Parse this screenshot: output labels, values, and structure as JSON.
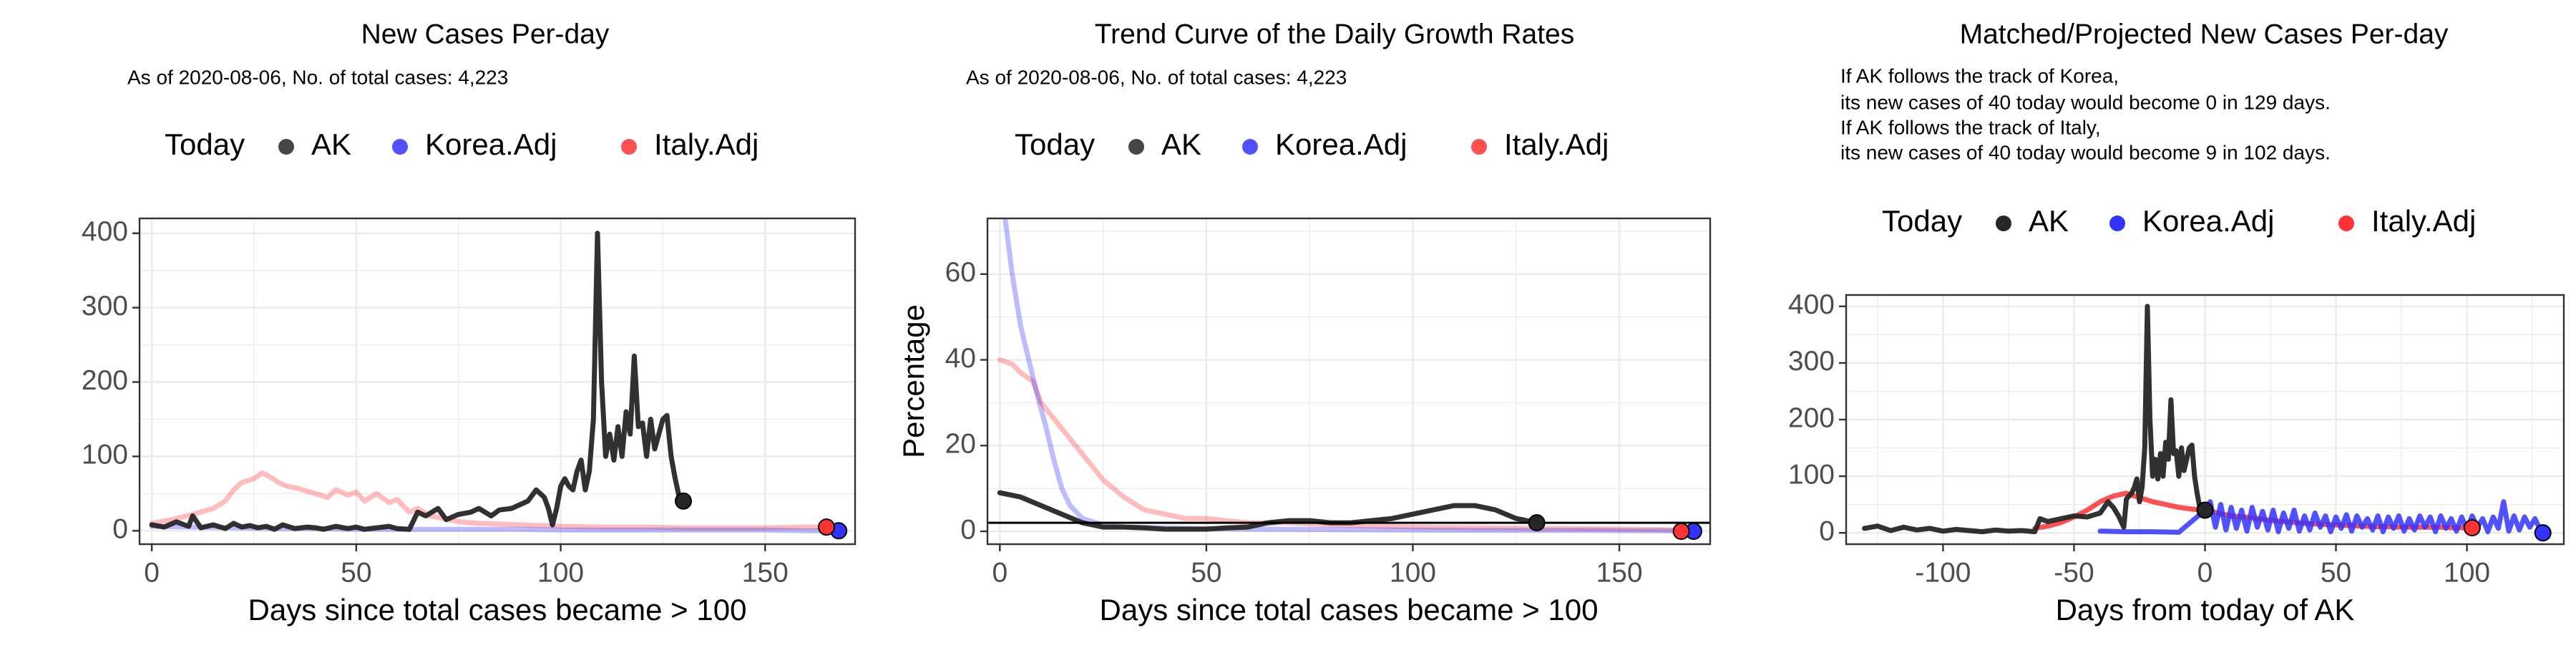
{
  "colors": {
    "ak": "#262626",
    "korea": "#3333ff",
    "italy": "#ff3333",
    "grid": "#ebebeb",
    "panel_border": "#333333"
  },
  "chart_data": [
    {
      "type": "line",
      "title": "New Cases Per-day",
      "subtitle": "As of 2020-08-06, No. of total cases: 4,223",
      "xlabel": "Days since total cases became > 100",
      "ylabel": "",
      "xlim": [
        -3,
        172
      ],
      "ylim": [
        -18,
        420
      ],
      "xticks": [
        0,
        50,
        100,
        150
      ],
      "yticks": [
        0,
        100,
        200,
        300,
        400
      ],
      "legend": {
        "position": "top",
        "entries": [
          "Today",
          "AK",
          "Korea.Adj",
          "Italy.Adj"
        ]
      },
      "series": [
        {
          "name": "AK",
          "x": [
            0,
            3,
            6,
            9,
            10,
            12,
            15,
            18,
            20,
            22,
            24,
            26,
            28,
            30,
            32,
            35,
            38,
            40,
            42,
            45,
            48,
            50,
            52,
            55,
            58,
            60,
            63,
            65,
            67,
            70,
            72,
            75,
            78,
            80,
            83,
            85,
            88,
            90,
            92,
            94,
            96,
            97,
            98,
            99,
            100,
            101,
            102,
            103,
            104,
            105,
            106,
            107,
            108,
            109,
            110,
            111,
            112,
            113,
            114,
            115,
            116,
            117,
            118,
            119,
            120,
            121,
            122,
            123,
            124,
            125,
            126,
            127,
            128,
            129,
            130
          ],
          "y": [
            8,
            5,
            12,
            6,
            20,
            4,
            8,
            3,
            10,
            5,
            7,
            4,
            6,
            2,
            8,
            3,
            5,
            4,
            2,
            6,
            3,
            5,
            2,
            4,
            6,
            3,
            2,
            25,
            20,
            30,
            15,
            22,
            25,
            30,
            20,
            28,
            30,
            35,
            40,
            55,
            45,
            30,
            8,
            30,
            60,
            70,
            60,
            55,
            80,
            95,
            55,
            80,
            150,
            400,
            200,
            100,
            130,
            95,
            140,
            100,
            160,
            130,
            235,
            140,
            145,
            100,
            150,
            110,
            130,
            150,
            155,
            100,
            70,
            45,
            40
          ]
        },
        {
          "name": "Korea.Adj",
          "x": [
            0,
            10,
            20,
            30,
            40,
            50,
            60,
            70,
            80,
            90,
            100,
            110,
            120,
            130,
            140,
            150,
            160,
            168
          ],
          "y": [
            6,
            5,
            4,
            3,
            3,
            2,
            2,
            2,
            2,
            2,
            1,
            1,
            1,
            1,
            1,
            1,
            0,
            0
          ]
        },
        {
          "name": "Italy.Adj",
          "x": [
            0,
            5,
            10,
            15,
            18,
            20,
            22,
            25,
            27,
            29,
            31,
            33,
            35,
            37,
            40,
            43,
            45,
            48,
            50,
            52,
            55,
            58,
            60,
            63,
            65,
            68,
            70,
            75,
            80,
            90,
            100,
            110,
            120,
            130,
            140,
            150,
            160,
            165
          ],
          "y": [
            10,
            15,
            22,
            30,
            40,
            55,
            65,
            70,
            78,
            72,
            65,
            60,
            58,
            55,
            50,
            45,
            55,
            48,
            52,
            40,
            50,
            38,
            42,
            25,
            30,
            20,
            18,
            12,
            10,
            8,
            6,
            5,
            5,
            4,
            4,
            4,
            5,
            5
          ]
        }
      ],
      "today_points": [
        {
          "series": "AK",
          "x": 130,
          "y": 40
        },
        {
          "series": "Korea.Adj",
          "x": 168,
          "y": 0
        },
        {
          "series": "Italy.Adj",
          "x": 165,
          "y": 5
        }
      ]
    },
    {
      "type": "line",
      "title": "Trend Curve of the Daily Growth Rates",
      "subtitle": "As of 2020-08-06, No. of total cases: 4,223",
      "xlabel": "Days since total cases became > 100",
      "ylabel": "Percentage",
      "xlim": [
        -3,
        172
      ],
      "ylim": [
        -3,
        73
      ],
      "xticks": [
        0,
        50,
        100,
        150
      ],
      "yticks": [
        0,
        20,
        40,
        60
      ],
      "hline": 2,
      "legend": {
        "position": "top",
        "entries": [
          "Today",
          "AK",
          "Korea.Adj",
          "Italy.Adj"
        ]
      },
      "series": [
        {
          "name": "AK",
          "x": [
            0,
            5,
            10,
            15,
            20,
            25,
            30,
            35,
            40,
            45,
            50,
            55,
            60,
            65,
            70,
            75,
            80,
            85,
            90,
            95,
            100,
            105,
            110,
            115,
            120,
            125,
            130
          ],
          "y": [
            9,
            8,
            6,
            4,
            2,
            1,
            1,
            0.8,
            0.5,
            0.5,
            0.5,
            0.8,
            1,
            2,
            2.5,
            2.5,
            2,
            2,
            2.5,
            3,
            4,
            5,
            6,
            6,
            5,
            3,
            2
          ]
        },
        {
          "name": "Korea.Adj",
          "x": [
            1,
            3,
            5,
            7,
            9,
            11,
            13,
            15,
            17,
            20,
            25,
            30,
            40,
            50,
            60,
            80,
            100,
            120,
            140,
            160,
            168
          ],
          "y": [
            75,
            60,
            48,
            40,
            32,
            25,
            17,
            10,
            6,
            3,
            1.5,
            1,
            0.8,
            0.6,
            0.5,
            0.4,
            0.3,
            0.2,
            0.2,
            0.1,
            0
          ]
        },
        {
          "name": "Italy.Adj",
          "x": [
            0,
            3,
            5,
            8,
            10,
            15,
            20,
            25,
            30,
            35,
            40,
            45,
            50,
            60,
            70,
            80,
            100,
            120,
            140,
            160,
            165
          ],
          "y": [
            40,
            39,
            37,
            35,
            30,
            24,
            18,
            12,
            8,
            5,
            4,
            3,
            3,
            2,
            2,
            1.5,
            1,
            0.8,
            0.6,
            0.4,
            0.3
          ]
        }
      ],
      "today_points": [
        {
          "series": "AK",
          "x": 130,
          "y": 2
        },
        {
          "series": "Korea.Adj",
          "x": 168,
          "y": 0
        },
        {
          "series": "Italy.Adj",
          "x": 165,
          "y": 0
        }
      ]
    },
    {
      "type": "line",
      "title": "Matched/Projected New Cases Per-day",
      "annotations": [
        "If AK follows the track of Korea,",
        "its new cases of 40 today would become 0 in 129 days.",
        "If AK follows the track of Italy,",
        "its new cases of 40 today would become 9 in 102 days."
      ],
      "xlabel": "Days from today of AK",
      "ylabel": "",
      "xlim": [
        -137,
        137
      ],
      "ylim": [
        -20,
        420
      ],
      "xticks": [
        -100,
        -50,
        0,
        50,
        100
      ],
      "yticks": [
        0,
        100,
        200,
        300,
        400
      ],
      "legend": {
        "position": "top",
        "entries": [
          "Today",
          "AK",
          "Korea.Adj",
          "Italy.Adj"
        ]
      },
      "series": [
        {
          "name": "AK",
          "x": [
            -130,
            -125,
            -120,
            -115,
            -110,
            -105,
            -100,
            -95,
            -90,
            -85,
            -80,
            -75,
            -70,
            -65,
            -63,
            -60,
            -55,
            -50,
            -45,
            -40,
            -37,
            -35,
            -33,
            -31,
            -30,
            -28,
            -27,
            -26,
            -25,
            -24,
            -23,
            -22,
            -21,
            -20,
            -19,
            -18,
            -17,
            -16,
            -15,
            -14,
            -13,
            -12,
            -11,
            -10,
            -9,
            -8,
            -7,
            -6,
            -5,
            -4,
            -3,
            -2,
            -1,
            0
          ],
          "y": [
            8,
            12,
            4,
            10,
            5,
            8,
            3,
            6,
            4,
            2,
            5,
            3,
            4,
            2,
            25,
            20,
            25,
            30,
            28,
            35,
            55,
            45,
            30,
            10,
            60,
            70,
            80,
            95,
            55,
            80,
            150,
            400,
            200,
            100,
            130,
            95,
            140,
            100,
            160,
            130,
            235,
            140,
            145,
            100,
            150,
            110,
            130,
            150,
            155,
            100,
            70,
            45,
            40,
            40
          ]
        },
        {
          "name": "Korea.Adj",
          "x": [
            -40,
            -30,
            -20,
            -10,
            0,
            2,
            4,
            6,
            8,
            10,
            12,
            14,
            16,
            18,
            20,
            22,
            24,
            26,
            28,
            30,
            32,
            34,
            36,
            38,
            40,
            42,
            44,
            46,
            48,
            50,
            52,
            54,
            56,
            58,
            60,
            62,
            64,
            66,
            68,
            70,
            72,
            74,
            76,
            78,
            80,
            82,
            84,
            86,
            88,
            90,
            92,
            94,
            96,
            98,
            100,
            102,
            104,
            106,
            108,
            110,
            112,
            114,
            116,
            118,
            120,
            122,
            124,
            126,
            128,
            129
          ],
          "y": [
            3,
            2,
            2,
            1,
            40,
            55,
            10,
            50,
            5,
            45,
            8,
            40,
            3,
            45,
            10,
            38,
            5,
            40,
            2,
            35,
            8,
            40,
            3,
            30,
            5,
            35,
            10,
            30,
            2,
            28,
            8,
            32,
            3,
            30,
            10,
            25,
            5,
            30,
            2,
            28,
            8,
            30,
            3,
            25,
            5,
            30,
            10,
            28,
            2,
            30,
            8,
            25,
            3,
            28,
            5,
            30,
            10,
            25,
            2,
            28,
            8,
            55,
            3,
            30,
            5,
            28,
            10,
            25,
            5,
            0
          ]
        },
        {
          "name": "Italy.Adj",
          "x": [
            -65,
            -60,
            -55,
            -50,
            -45,
            -40,
            -35,
            -30,
            -25,
            -20,
            -15,
            -10,
            -5,
            0,
            5,
            10,
            15,
            20,
            25,
            30,
            35,
            40,
            45,
            50,
            55,
            60,
            65,
            70,
            75,
            80,
            85,
            90,
            95,
            100,
            102
          ],
          "y": [
            8,
            12,
            18,
            28,
            40,
            55,
            65,
            70,
            62,
            55,
            50,
            45,
            42,
            40,
            35,
            30,
            28,
            25,
            22,
            20,
            18,
            16,
            15,
            14,
            13,
            12,
            11,
            11,
            10,
            10,
            10,
            10,
            9,
            9,
            9
          ]
        }
      ],
      "today_points": [
        {
          "series": "AK",
          "x": 0,
          "y": 40
        },
        {
          "series": "Korea.Adj",
          "x": 129,
          "y": 0
        },
        {
          "series": "Italy.Adj",
          "x": 102,
          "y": 9
        }
      ]
    }
  ]
}
